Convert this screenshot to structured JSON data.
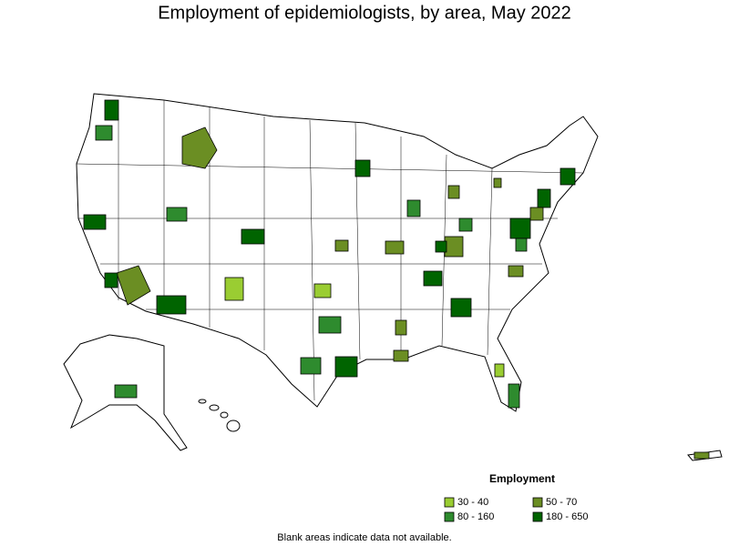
{
  "title": "Employment of epidemiologists, by area, May 2022",
  "legend": {
    "title": "Employment",
    "items": [
      {
        "label": "30 - 40",
        "color": "#9acd32"
      },
      {
        "label": "50 - 70",
        "color": "#6b8e23"
      },
      {
        "label": "80 - 160",
        "color": "#2e8b2e"
      },
      {
        "label": "180 - 650",
        "color": "#006400"
      }
    ]
  },
  "note": "Blank areas indicate data not available."
}
